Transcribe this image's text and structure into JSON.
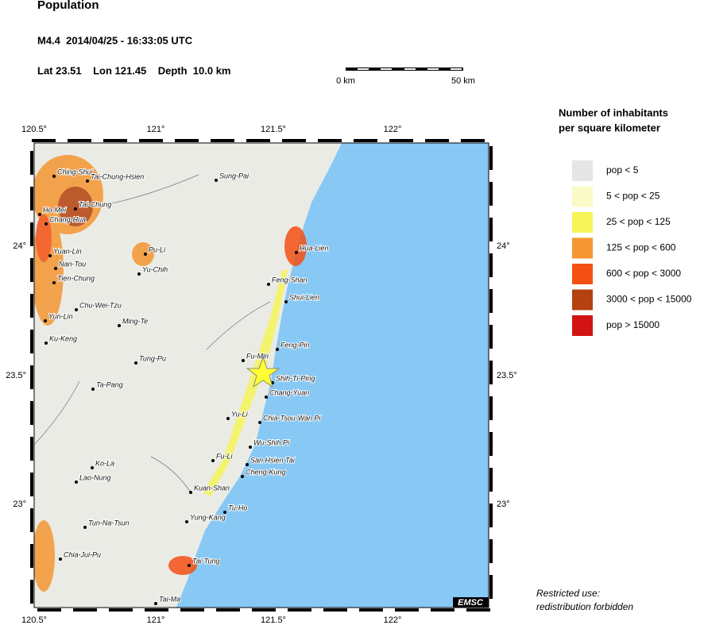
{
  "header": {
    "title": "Population",
    "event": "M4.4  2014/04/25 - 16:33:05 UTC",
    "location": "Lat 23.51    Lon 121.45    Depth  10.0 km"
  },
  "scale_bar": {
    "labels": [
      "0 km",
      "50 km"
    ]
  },
  "map": {
    "lon_ticks": [
      "120.5°",
      "121°",
      "121.5°",
      "122°"
    ],
    "lat_ticks": [
      "24°",
      "23.5°",
      "23°"
    ],
    "logo": "EMSC",
    "cities": [
      "Ching-Shui",
      "Tai-Chung-Hsien",
      "Tai-Chung",
      "Ho-Mei",
      "Chang-Hua",
      "Sung-Pai",
      "Pu-Li",
      "Yuan-Lin",
      "Nan-Tou",
      "Yu-Chih",
      "Tien-Chung",
      "Hua-Lien",
      "Feng-Shan",
      "Shui-Lien",
      "Chu-Wei-Tzu",
      "Yun-Lin",
      "Ming-Te",
      "Ku-Keng",
      "Feng-Pin",
      "Fu-Min",
      "Tung-Pu",
      "Shih-Ti-Ping",
      "Ta-Pang",
      "Chang-Yuan",
      "Yu-Li",
      "Chia-Tsou-Wan Pi",
      "Wu-Shih Pi",
      "Fu-Li",
      "San Hsien Tai",
      "Ko-La",
      "Cheng-Kung",
      "Lao-Nung",
      "Kuan-Shan",
      "Tu-Ho",
      "Yung-Kang",
      "Tun-Na-Tsun",
      "Chia-Jui-Pu",
      "Tai-Tung",
      "Tai-Ma"
    ]
  },
  "legend": {
    "title": [
      "Number of inhabitants",
      "per square kilometer"
    ],
    "items": [
      {
        "label": "pop < 5",
        "color": "#e6e6e6"
      },
      {
        "label": "5 < pop < 25",
        "color": "#fafac8"
      },
      {
        "label": "25 < pop < 125",
        "color": "#f5f55a"
      },
      {
        "label": "125 < pop < 600",
        "color": "#f59632"
      },
      {
        "label": "600 < pop < 3000",
        "color": "#f55014"
      },
      {
        "label": "3000 < pop < 15000",
        "color": "#b4410f"
      },
      {
        "label": "pop > 15000",
        "color": "#d21414"
      }
    ]
  },
  "footer": [
    "Restricted use:",
    "redistribution forbidden"
  ]
}
